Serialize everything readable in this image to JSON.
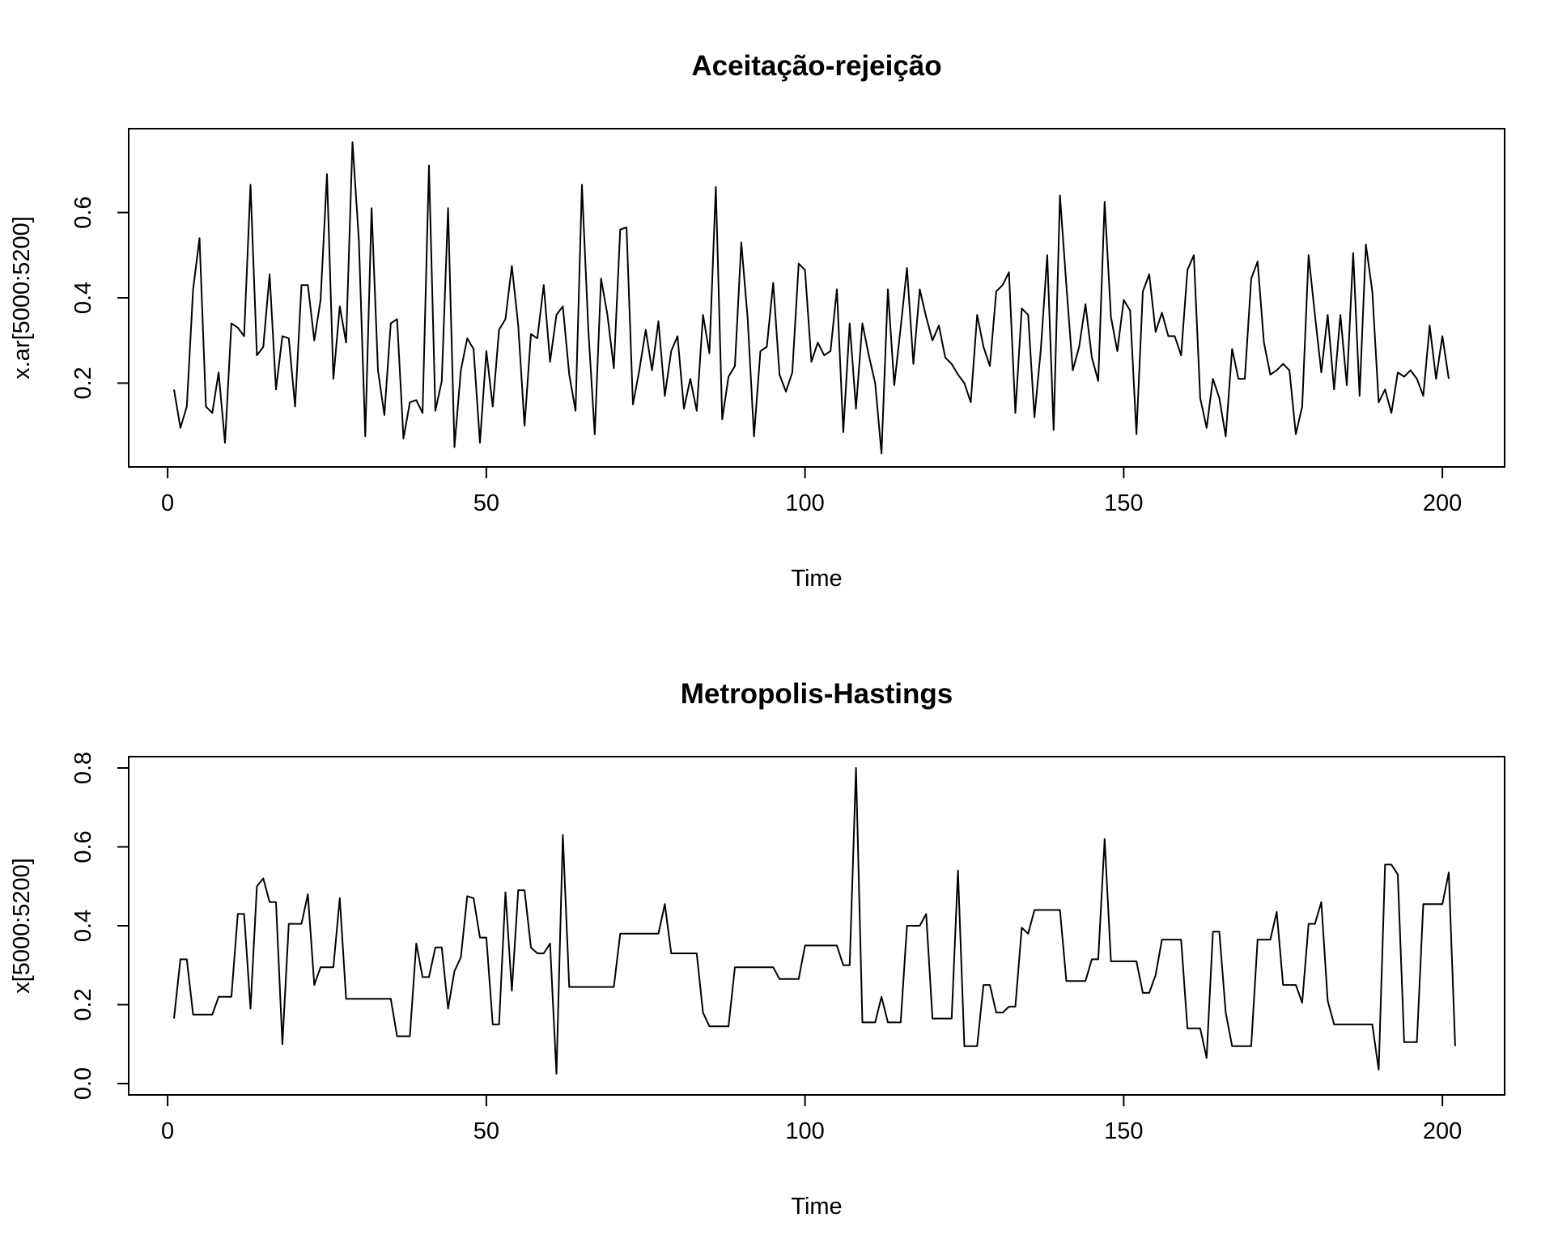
{
  "chart_data": [
    {
      "type": "line",
      "title": "Aceitação-rejeição",
      "xlabel": "Time",
      "ylabel": "x.ar[5000:5200]",
      "xlim": [
        1,
        201
      ],
      "ylim": [
        0.03,
        0.77
      ],
      "xticks": [
        0,
        50,
        100,
        150,
        200
      ],
      "yticks": [
        0.2,
        0.4,
        0.6
      ],
      "grid": false,
      "color": "#000000",
      "x_start": 1,
      "values": [
        0.185,
        0.095,
        0.145,
        0.42,
        0.54,
        0.145,
        0.13,
        0.225,
        0.06,
        0.34,
        0.33,
        0.31,
        0.665,
        0.265,
        0.285,
        0.455,
        0.185,
        0.31,
        0.305,
        0.145,
        0.43,
        0.43,
        0.3,
        0.395,
        0.69,
        0.21,
        0.38,
        0.295,
        0.765,
        0.535,
        0.075,
        0.61,
        0.23,
        0.125,
        0.34,
        0.35,
        0.07,
        0.155,
        0.16,
        0.13,
        0.71,
        0.135,
        0.205,
        0.61,
        0.05,
        0.23,
        0.305,
        0.28,
        0.06,
        0.275,
        0.145,
        0.325,
        0.35,
        0.475,
        0.335,
        0.1,
        0.315,
        0.305,
        0.43,
        0.25,
        0.36,
        0.38,
        0.22,
        0.135,
        0.665,
        0.325,
        0.08,
        0.445,
        0.36,
        0.235,
        0.56,
        0.565,
        0.15,
        0.23,
        0.325,
        0.23,
        0.345,
        0.17,
        0.275,
        0.31,
        0.14,
        0.21,
        0.135,
        0.36,
        0.27,
        0.66,
        0.115,
        0.215,
        0.24,
        0.53,
        0.35,
        0.075,
        0.275,
        0.285,
        0.435,
        0.22,
        0.18,
        0.225,
        0.48,
        0.465,
        0.25,
        0.295,
        0.265,
        0.275,
        0.42,
        0.085,
        0.34,
        0.14,
        0.34,
        0.265,
        0.2,
        0.035,
        0.42,
        0.195,
        0.33,
        0.47,
        0.245,
        0.42,
        0.355,
        0.3,
        0.335,
        0.26,
        0.245,
        0.22,
        0.2,
        0.155,
        0.36,
        0.285,
        0.24,
        0.415,
        0.43,
        0.46,
        0.13,
        0.375,
        0.36,
        0.12,
        0.28,
        0.5,
        0.09,
        0.64,
        0.43,
        0.23,
        0.285,
        0.385,
        0.26,
        0.205,
        0.625,
        0.355,
        0.275,
        0.395,
        0.37,
        0.08,
        0.415,
        0.455,
        0.32,
        0.365,
        0.31,
        0.31,
        0.265,
        0.465,
        0.5,
        0.165,
        0.095,
        0.21,
        0.165,
        0.075,
        0.28,
        0.21,
        0.21,
        0.445,
        0.485,
        0.295,
        0.22,
        0.23,
        0.245,
        0.23,
        0.08,
        0.145,
        0.5,
        0.36,
        0.225,
        0.36,
        0.185,
        0.36,
        0.195,
        0.505,
        0.17,
        0.525,
        0.415,
        0.155,
        0.185,
        0.13,
        0.225,
        0.215,
        0.23,
        0.21,
        0.17,
        0.335,
        0.21,
        0.31,
        0.21
      ]
    },
    {
      "type": "line",
      "title": "Metropolis-Hastings",
      "xlabel": "Time",
      "ylabel": "x[5000:5200]",
      "xlim": [
        1,
        201
      ],
      "ylim": [
        0.0,
        0.8
      ],
      "xticks": [
        0,
        50,
        100,
        150,
        200
      ],
      "yticks": [
        0.0,
        0.2,
        0.4,
        0.6,
        0.8
      ],
      "grid": false,
      "color": "#000000",
      "x_start": 1,
      "values": [
        0.165,
        0.315,
        0.315,
        0.175,
        0.175,
        0.175,
        0.175,
        0.22,
        0.22,
        0.22,
        0.43,
        0.43,
        0.19,
        0.5,
        0.52,
        0.46,
        0.46,
        0.1,
        0.405,
        0.405,
        0.405,
        0.48,
        0.25,
        0.295,
        0.295,
        0.295,
        0.47,
        0.215,
        0.215,
        0.215,
        0.215,
        0.215,
        0.215,
        0.215,
        0.215,
        0.12,
        0.12,
        0.12,
        0.355,
        0.27,
        0.27,
        0.345,
        0.345,
        0.19,
        0.285,
        0.32,
        0.475,
        0.47,
        0.37,
        0.37,
        0.15,
        0.15,
        0.485,
        0.235,
        0.49,
        0.49,
        0.345,
        0.33,
        0.33,
        0.355,
        0.025,
        0.63,
        0.245,
        0.245,
        0.245,
        0.245,
        0.245,
        0.245,
        0.245,
        0.245,
        0.38,
        0.38,
        0.38,
        0.38,
        0.38,
        0.38,
        0.38,
        0.455,
        0.33,
        0.33,
        0.33,
        0.33,
        0.33,
        0.18,
        0.145,
        0.145,
        0.145,
        0.145,
        0.295,
        0.295,
        0.295,
        0.295,
        0.295,
        0.295,
        0.295,
        0.265,
        0.265,
        0.265,
        0.265,
        0.35,
        0.35,
        0.35,
        0.35,
        0.35,
        0.35,
        0.3,
        0.3,
        0.8,
        0.155,
        0.155,
        0.155,
        0.22,
        0.155,
        0.155,
        0.155,
        0.4,
        0.4,
        0.4,
        0.43,
        0.165,
        0.165,
        0.165,
        0.165,
        0.54,
        0.095,
        0.095,
        0.095,
        0.25,
        0.25,
        0.18,
        0.18,
        0.195,
        0.195,
        0.395,
        0.38,
        0.44,
        0.44,
        0.44,
        0.44,
        0.44,
        0.26,
        0.26,
        0.26,
        0.26,
        0.315,
        0.315,
        0.62,
        0.31,
        0.31,
        0.31,
        0.31,
        0.31,
        0.23,
        0.23,
        0.275,
        0.365,
        0.365,
        0.365,
        0.365,
        0.14,
        0.14,
        0.14,
        0.065,
        0.385,
        0.385,
        0.18,
        0.095,
        0.095,
        0.095,
        0.095,
        0.365,
        0.365,
        0.365,
        0.435,
        0.25,
        0.25,
        0.25,
        0.205,
        0.405,
        0.405,
        0.46,
        0.21,
        0.15,
        0.15,
        0.15,
        0.15,
        0.15,
        0.15,
        0.15,
        0.035,
        0.555,
        0.555,
        0.53,
        0.105,
        0.105,
        0.105,
        0.455,
        0.455,
        0.455,
        0.455,
        0.535,
        0.095
      ]
    }
  ]
}
